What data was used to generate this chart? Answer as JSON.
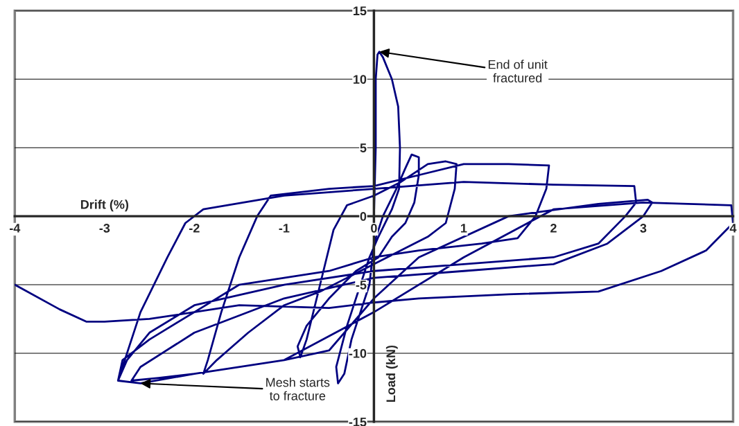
{
  "chart_data": {
    "type": "line",
    "xlabel": "Drift (%)",
    "ylabel": "Load (kN)",
    "xlim": [
      -4,
      4
    ],
    "ylim": [
      -15,
      15
    ],
    "xticks": [
      -4,
      -3,
      -2,
      -1,
      0,
      1,
      2,
      3,
      4
    ],
    "yticks": [
      -15,
      -10,
      -5,
      0,
      5,
      10,
      15
    ],
    "grid": "y",
    "marker": "none",
    "line_style": "solid",
    "series": [
      {
        "color": "#000080",
        "x": [
          0,
          0.02,
          0.02,
          0.04,
          0.06,
          0.1,
          0.2,
          0.27,
          0.29,
          0.28,
          0.2,
          0.05,
          -0.05,
          -0.15,
          -0.3,
          -0.38,
          -0.42,
          -0.4,
          -0.33,
          -0.25,
          -0.05,
          0,
          0.1,
          0.25,
          0.35,
          0.42,
          0.5,
          0.5,
          0.45,
          0.35,
          0.2,
          0.05,
          -0.2,
          -0.5,
          -0.75,
          -0.85,
          -0.82,
          -0.75,
          -0.6,
          -0.45,
          -0.3,
          0,
          0.3,
          0.6,
          0.8,
          0.92,
          0.9,
          0.8,
          0.6,
          0.3,
          0,
          -0.3,
          -0.6,
          -1,
          -1.4,
          -1.75,
          -1.9,
          -1.85,
          -1.7,
          -1.5,
          -1.3,
          -1.15,
          -0.5,
          0,
          0.5,
          1,
          1.5,
          1.95,
          1.92,
          1.8,
          1.6,
          1.2,
          0.5,
          0,
          -0.5,
          -1,
          -1.5,
          -2,
          -2.5,
          -2.8,
          -2.85,
          -2.8,
          -2.6,
          -2.3,
          -2.1,
          -1.9,
          -1,
          0,
          1,
          2,
          2.9,
          2.92,
          2.8,
          2.5,
          2,
          1,
          0,
          -1,
          -2,
          -2.5,
          -2.75,
          -2.85,
          -2.6,
          -2,
          -1,
          -0.5,
          0,
          0.5,
          1.5,
          2.5,
          3.05,
          3.1,
          3.0,
          2.6,
          2.0,
          1.0,
          0,
          -1,
          -2,
          -2.6,
          -2.7,
          -2.4,
          -2.0,
          -1,
          0,
          1,
          2,
          3,
          3.5,
          3.98,
          4.0,
          3.7,
          3.2,
          2.5,
          1.5,
          0.5,
          0,
          -0.5,
          -1.5,
          -2.5,
          -3,
          -3.2,
          -3.5,
          -4
        ],
        "values": [
          0,
          5,
          10,
          11.8,
          12,
          11.6,
          10,
          8,
          5,
          2,
          0.5,
          -1.5,
          -3,
          -5,
          -8,
          -10,
          -11,
          -12.2,
          -11.5,
          -9,
          -5,
          -2,
          0,
          2,
          3.5,
          4.5,
          4.3,
          3,
          1,
          -0.5,
          -1.5,
          -3,
          -4,
          -6,
          -8,
          -9.5,
          -10.3,
          -9,
          -5,
          -1,
          0.8,
          1.5,
          2.5,
          3.8,
          4.0,
          3.8,
          2,
          -0.5,
          -1.5,
          -2.5,
          -3.5,
          -4.5,
          -5.5,
          -6.5,
          -8.5,
          -10.5,
          -11.5,
          -10.5,
          -7,
          -3,
          0,
          1.5,
          2,
          2.2,
          3,
          3.8,
          3.8,
          3.7,
          2,
          0,
          -1.6,
          -2,
          -2.5,
          -3,
          -4,
          -4.5,
          -5,
          -7,
          -9,
          -10.5,
          -12,
          -11,
          -7,
          -3,
          -0.5,
          0.5,
          1.5,
          2,
          2.5,
          2.3,
          2.2,
          1,
          0,
          -2,
          -3,
          -3.5,
          -4,
          -5,
          -6.5,
          -8.5,
          -10.5,
          -12,
          -12.2,
          -11.5,
          -10.5,
          -9.8,
          -6,
          -3,
          0,
          0.9,
          1.2,
          1,
          0,
          -2,
          -3.5,
          -4,
          -4.5,
          -6,
          -8.5,
          -11,
          -12,
          -11.8,
          -11.5,
          -10.5,
          -7,
          -3,
          0.5,
          1,
          0.9,
          0.8,
          -0.5,
          -2.5,
          -4,
          -5.5,
          -5.7,
          -6,
          -6.3,
          -6.7,
          -6.5,
          -7.5,
          -7.7,
          -7.7,
          -6.8,
          -5
        ]
      }
    ],
    "annotations": [
      {
        "text": "End of unit\nfractured",
        "x": 0.06,
        "y": 12
      },
      {
        "text": "Mesh starts\nto fracture",
        "x": -2.6,
        "y": -12.2
      }
    ]
  }
}
